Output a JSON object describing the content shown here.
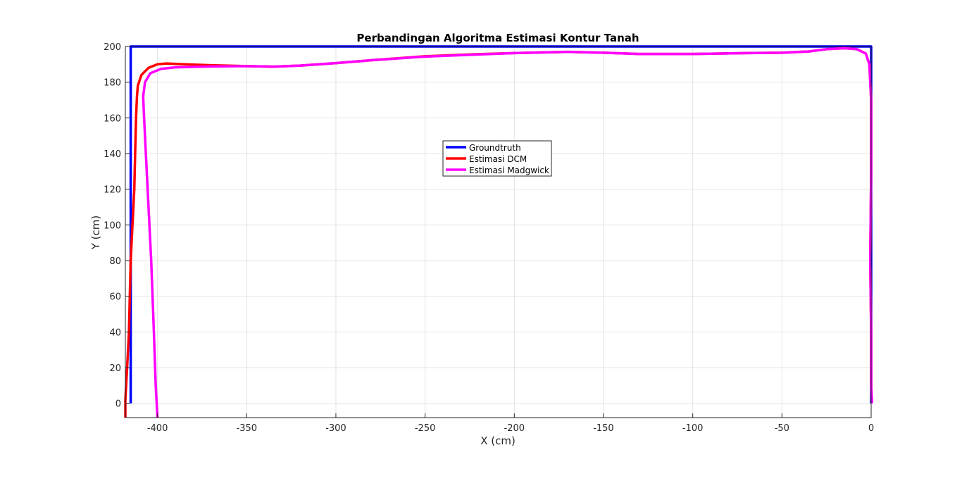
{
  "chart_data": {
    "type": "line",
    "title": "Perbandingan Algoritma Estimasi Kontur Tanah",
    "xlabel": "X (cm)",
    "ylabel": "Y (cm)",
    "xlim": [
      -418,
      0
    ],
    "ylim": [
      -8,
      200
    ],
    "xticks": [
      -400,
      -350,
      -300,
      -250,
      -200,
      -150,
      -100,
      -50,
      0
    ],
    "yticks": [
      0,
      20,
      40,
      60,
      80,
      100,
      120,
      140,
      160,
      180,
      200
    ],
    "grid": true,
    "legend_position": "center",
    "series": [
      {
        "name": "Groundtruth",
        "color": "#0000ff",
        "points": [
          [
            -415,
            0
          ],
          [
            -415,
            200
          ],
          [
            0,
            200
          ],
          [
            0,
            0
          ]
        ]
      },
      {
        "name": "Estimasi DCM",
        "color": "#ff0000",
        "points": [
          [
            -418,
            -8
          ],
          [
            -418,
            2
          ],
          [
            -417,
            20
          ],
          [
            -416,
            40
          ],
          [
            -415.5,
            60
          ],
          [
            -415,
            80
          ],
          [
            -414,
            100
          ],
          [
            -413,
            120
          ],
          [
            -412.5,
            140
          ],
          [
            -412,
            160
          ],
          [
            -411.5,
            172
          ],
          [
            -411,
            178
          ],
          [
            -409,
            184
          ],
          [
            -405,
            188
          ],
          [
            -400,
            190
          ],
          [
            -395,
            190.5
          ],
          [
            -385,
            190
          ],
          [
            -370,
            189.5
          ],
          [
            -350,
            189
          ],
          [
            -335,
            188.7
          ],
          [
            -320,
            189.3
          ],
          [
            -300,
            190.7
          ],
          [
            -280,
            192.3
          ],
          [
            -250,
            194.5
          ],
          [
            -220,
            195.7
          ],
          [
            -200,
            196.3
          ],
          [
            -170,
            197
          ],
          [
            -150,
            196.5
          ],
          [
            -130,
            195.8
          ],
          [
            -100,
            195.8
          ],
          [
            -70,
            196.3
          ],
          [
            -50,
            196.5
          ],
          [
            -35,
            197.2
          ],
          [
            -25,
            198.5
          ],
          [
            -15,
            199
          ],
          [
            -8,
            198.5
          ],
          [
            -3,
            196
          ],
          [
            -1,
            190
          ],
          [
            0,
            170
          ],
          [
            0,
            130
          ],
          [
            -0.5,
            80
          ],
          [
            0,
            40
          ],
          [
            0,
            10
          ],
          [
            0.5,
            0
          ]
        ]
      },
      {
        "name": "Estimasi Madgwick",
        "color": "#ff00ff",
        "points": [
          [
            -400,
            -8
          ],
          [
            -401,
            10
          ],
          [
            -402,
            40
          ],
          [
            -403.5,
            80
          ],
          [
            -405,
            110
          ],
          [
            -406.5,
            140
          ],
          [
            -407.5,
            160
          ],
          [
            -408,
            172
          ],
          [
            -407,
            180
          ],
          [
            -404,
            185
          ],
          [
            -398,
            187.5
          ],
          [
            -390,
            188.3
          ],
          [
            -370,
            188.8
          ],
          [
            -350,
            189
          ],
          [
            -335,
            188.7
          ],
          [
            -320,
            189.3
          ],
          [
            -300,
            190.7
          ],
          [
            -280,
            192.3
          ],
          [
            -250,
            194.3
          ],
          [
            -220,
            195.5
          ],
          [
            -200,
            196.3
          ],
          [
            -170,
            197
          ],
          [
            -150,
            196.5
          ],
          [
            -130,
            195.8
          ],
          [
            -100,
            195.8
          ],
          [
            -70,
            196.3
          ],
          [
            -50,
            196.5
          ],
          [
            -35,
            197.2
          ],
          [
            -25,
            198.5
          ],
          [
            -15,
            199
          ],
          [
            -8,
            198.5
          ],
          [
            -3,
            196
          ],
          [
            -1,
            190
          ],
          [
            0,
            170
          ],
          [
            0,
            130
          ],
          [
            -0.5,
            80
          ],
          [
            0,
            40
          ],
          [
            0,
            10
          ],
          [
            0.5,
            0
          ]
        ]
      }
    ]
  }
}
